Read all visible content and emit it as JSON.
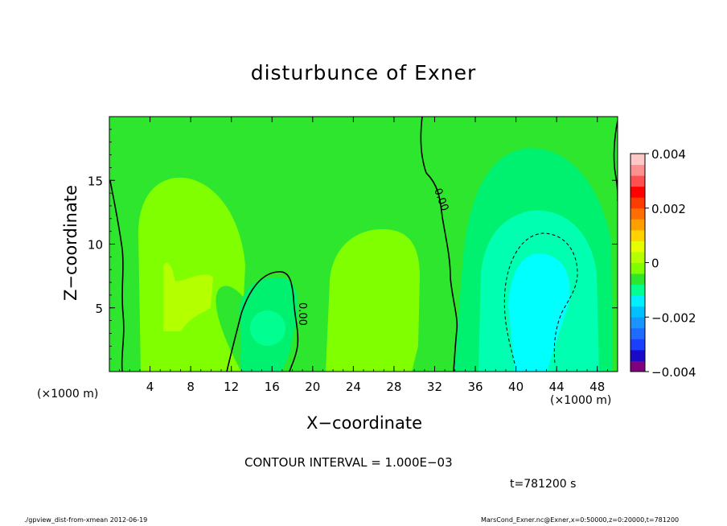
{
  "chart_data": {
    "type": "heatmap",
    "title": "disturbunce of Exner",
    "xlabel": "X−coordinate",
    "ylabel": "Z−coordinate",
    "x_unit_left": "(×1000 m)",
    "x_unit_right": "(×1000 m)",
    "xlim": [
      0,
      50
    ],
    "ylim": [
      0,
      20
    ],
    "x_ticks": [
      4,
      8,
      12,
      16,
      20,
      24,
      28,
      32,
      36,
      40,
      44,
      48
    ],
    "x_tick_labels": [
      "4",
      "8",
      "12",
      "16",
      "20",
      "24",
      "28",
      "32",
      "36",
      "40",
      "44",
      "48"
    ],
    "y_ticks": [
      5,
      10,
      15
    ],
    "y_tick_labels": [
      "5",
      "10",
      "15"
    ],
    "contour_label": "0.00",
    "contour_interval_text": "CONTOUR INTERVAL = 1.000E−03",
    "time_text": "t=781200 s",
    "colorbar": {
      "range": [
        -0.004,
        0.004
      ],
      "tick_values": [
        0.004,
        0.002,
        0,
        -0.002,
        -0.004
      ],
      "tick_labels": [
        "0.004",
        "0.002",
        "0",
        "−0.002",
        "−0.004"
      ],
      "colors": [
        "#800080",
        "#1a0ac8",
        "#1b3fff",
        "#1f6aff",
        "#1a94ff",
        "#00c0ff",
        "#00f0ff",
        "#00ff90",
        "#2ee62e",
        "#80ff00",
        "#b4ff00",
        "#e6ff00",
        "#ffd200",
        "#ffa000",
        "#ff6e00",
        "#ff3c00",
        "#ff0000",
        "#ff5050",
        "#ff9090",
        "#ffc8c8"
      ]
    },
    "colors": {
      "background_field": "#2ee62e",
      "weak_positive": "#80ff00",
      "positive": "#b4ff00",
      "weak_negative": "#00f070",
      "negative": "#00ffb0",
      "strong_negative": "#00ffff"
    }
  },
  "footer": {
    "left": "./gpview_dist-from-xmean   2012-06-19",
    "right": "MarsCond_Exner.nc@Exner,x=0:50000,z=0:20000,t=781200"
  }
}
